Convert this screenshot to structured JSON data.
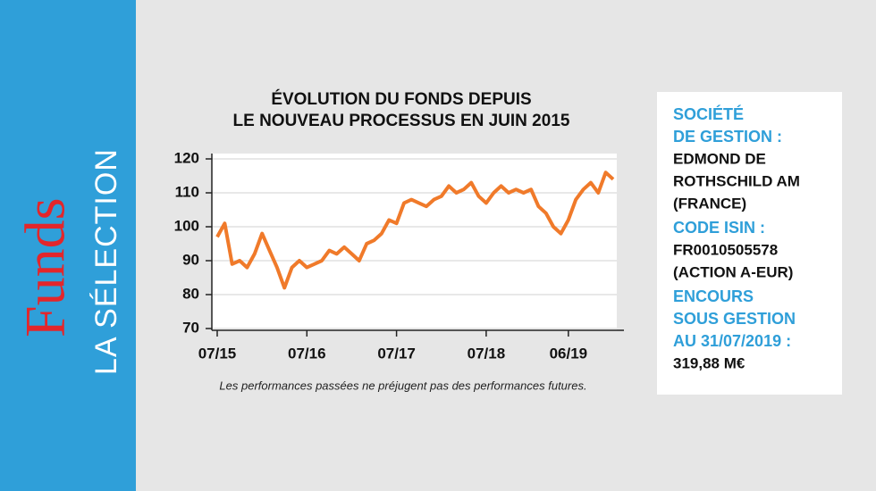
{
  "sidebar": {
    "brand": "Funds",
    "subtitle": "LA SÉLECTION"
  },
  "chart_data": {
    "type": "line",
    "title": [
      "ÉVOLUTION DU FONDS DEPUIS",
      "LE NOUVEAU PROCESSUS EN JUIN 2015"
    ],
    "categories": [
      "07/15",
      null,
      null,
      null,
      null,
      null,
      null,
      null,
      null,
      null,
      null,
      null,
      "07/16",
      null,
      null,
      null,
      null,
      null,
      null,
      null,
      null,
      null,
      null,
      null,
      "07/17",
      null,
      null,
      null,
      null,
      null,
      null,
      null,
      null,
      null,
      null,
      null,
      "07/18",
      null,
      null,
      null,
      null,
      null,
      null,
      null,
      null,
      null,
      null,
      "06/19",
      null,
      null,
      null,
      null,
      null,
      null
    ],
    "values": [
      97,
      101,
      89,
      90,
      88,
      92,
      98,
      93,
      88,
      82,
      88,
      90,
      88,
      89,
      90,
      93,
      92,
      94,
      92,
      90,
      95,
      96,
      98,
      102,
      101,
      107,
      108,
      107,
      106,
      108,
      109,
      112,
      110,
      111,
      113,
      109,
      107,
      110,
      112,
      110,
      111,
      110,
      111,
      106,
      104,
      100,
      98,
      102,
      108,
      111,
      113,
      110,
      116,
      114
    ],
    "color": "#f07a2a",
    "ylim": [
      70,
      120
    ],
    "yticks": [
      70,
      80,
      90,
      100,
      110,
      120
    ],
    "grid": true,
    "footnote": "Les performances passées ne préjugent pas des performances futures."
  },
  "info": {
    "sections": [
      {
        "label": [
          "SOCIÉTÉ",
          "DE GESTION :"
        ],
        "value": [
          "EDMOND DE",
          "ROTHSCHILD AM",
          "(FRANCE)"
        ]
      },
      {
        "label": [
          "CODE ISIN :"
        ],
        "value": [
          "FR0010505578",
          "(ACTION A-EUR)"
        ]
      },
      {
        "label": [
          "ENCOURS",
          "SOUS GESTION",
          "AU 31/07/2019 :"
        ],
        "value": [
          "319,88 M€"
        ]
      }
    ]
  }
}
